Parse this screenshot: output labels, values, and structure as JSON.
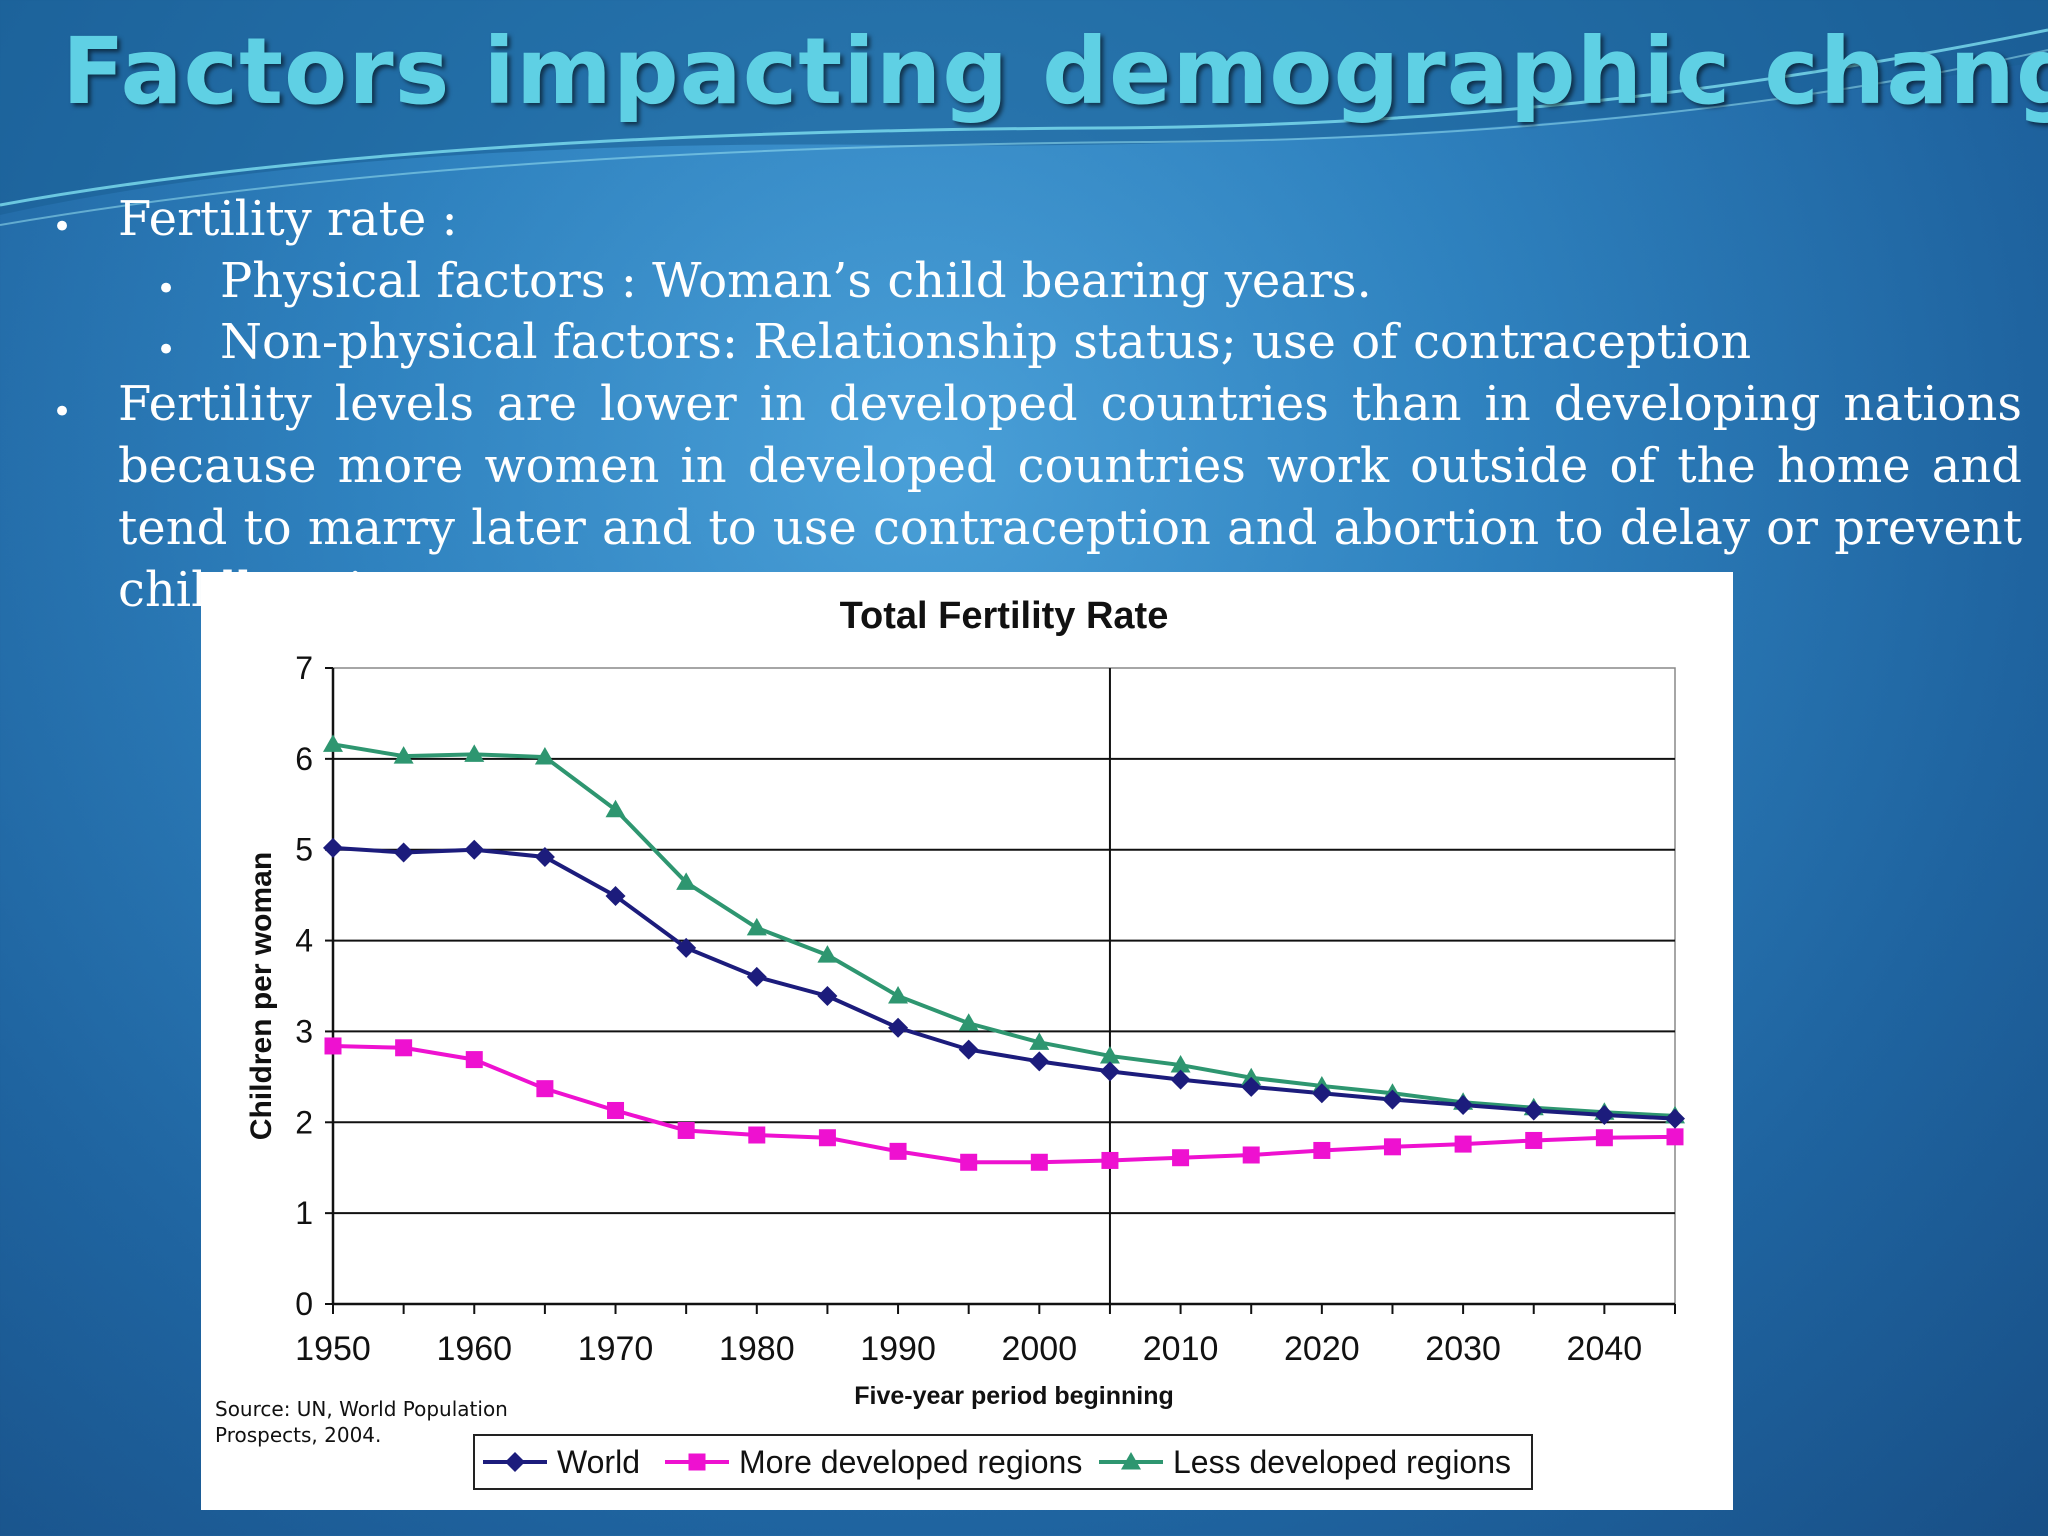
{
  "slide": {
    "title": "Factors impacting demographic change",
    "bullets": [
      {
        "text": "Fertility rate :",
        "level": 1
      },
      {
        "text": "Physical factors : Woman’s child bearing years.",
        "level": 2
      },
      {
        "text": "Non-physical factors: Relationship status; use of contraception",
        "level": 2
      },
      {
        "text": "Fertility levels are lower in developed countries than in developing nations because more women in developed countries work outside of the home and tend to marry later and to use contraception and abortion to delay or prevent childbearing.",
        "level": 1
      }
    ],
    "bullet_glyph": "•",
    "source": "Source: UN, World Population Prospects, 2004.",
    "source_lines": [
      "Source: UN, World Population",
      "Prospects, 2004."
    ]
  },
  "chart_data": {
    "type": "line",
    "title": "Total Fertility Rate",
    "xlabel": "Five-year period beginning",
    "ylabel": "Children per woman",
    "x": [
      1950,
      1955,
      1960,
      1965,
      1970,
      1975,
      1980,
      1985,
      1990,
      1995,
      2000,
      2005,
      2010,
      2015,
      2020,
      2025,
      2030,
      2035,
      2040,
      2045
    ],
    "xlim": [
      1950,
      2045
    ],
    "ylim": [
      0,
      7
    ],
    "x_tick_labels": [
      "1950",
      "1960",
      "1970",
      "1980",
      "1990",
      "2000",
      "2010",
      "2020",
      "2030",
      "2040"
    ],
    "y_tick_labels": [
      "0",
      "1",
      "2",
      "3",
      "4",
      "5",
      "6",
      "7"
    ],
    "grid": "horizontal",
    "divider_at": 2005,
    "legend_position": "bottom",
    "series": [
      {
        "name": "World",
        "color": "#1c1c7c",
        "marker": "diamond",
        "values": [
          5.02,
          4.97,
          5.0,
          4.92,
          4.49,
          3.92,
          3.6,
          3.39,
          3.04,
          2.8,
          2.67,
          2.56,
          2.47,
          2.39,
          2.32,
          2.25,
          2.19,
          2.13,
          2.08,
          2.04
        ]
      },
      {
        "name": "More developed regions",
        "color": "#ee11d0",
        "marker": "square",
        "values": [
          2.84,
          2.82,
          2.69,
          2.37,
          2.13,
          1.91,
          1.86,
          1.83,
          1.68,
          1.56,
          1.56,
          1.58,
          1.61,
          1.64,
          1.69,
          1.73,
          1.76,
          1.8,
          1.83,
          1.84
        ]
      },
      {
        "name": "Less developed regions",
        "color": "#2e9670",
        "marker": "triangle",
        "values": [
          6.16,
          6.03,
          6.05,
          6.02,
          5.44,
          4.64,
          4.14,
          3.84,
          3.39,
          3.09,
          2.88,
          2.73,
          2.63,
          2.49,
          2.4,
          2.32,
          2.22,
          2.16,
          2.11,
          2.07
        ]
      }
    ]
  }
}
